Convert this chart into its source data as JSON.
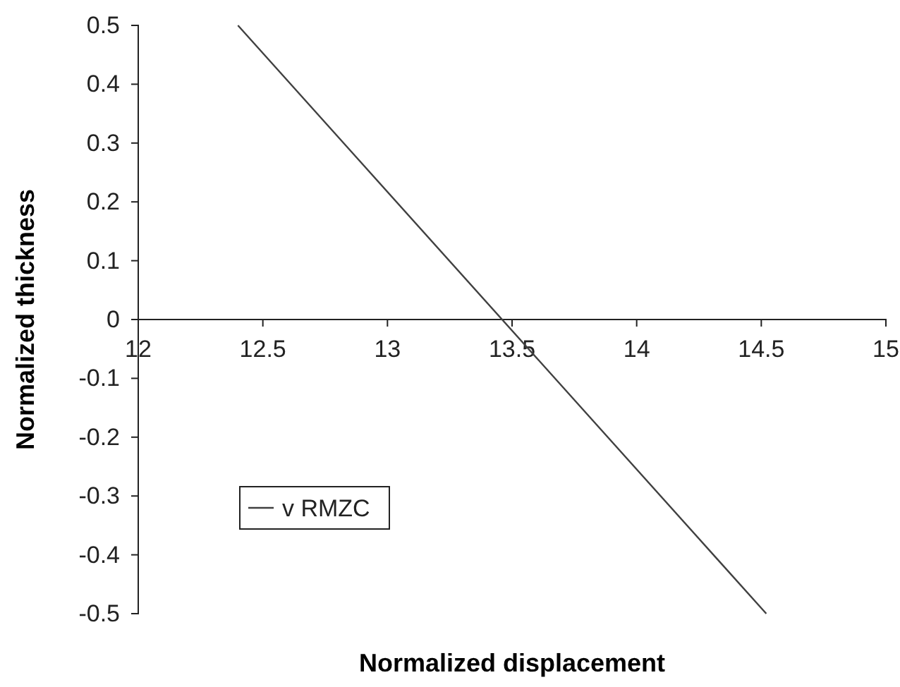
{
  "chart_data": {
    "type": "line",
    "xlabel": "Normalized displacement",
    "ylabel": "Normalized thickness",
    "xlim": [
      12,
      15
    ],
    "xticks": [
      12,
      12.5,
      13,
      13.5,
      14,
      14.5,
      15
    ],
    "ylim": [
      -0.5,
      0.5
    ],
    "yticks": [
      -0.5,
      -0.4,
      -0.3,
      -0.2,
      -0.1,
      0,
      0.1,
      0.2,
      0.3,
      0.4,
      0.5
    ],
    "series": [
      {
        "name": "v RMZC",
        "color": "#404040",
        "x": [
          12.4,
          14.52
        ],
        "values": [
          0.5,
          -0.5
        ]
      }
    ],
    "legend": "bottom left",
    "grid": false,
    "marker": "none",
    "line_style": "solid"
  }
}
